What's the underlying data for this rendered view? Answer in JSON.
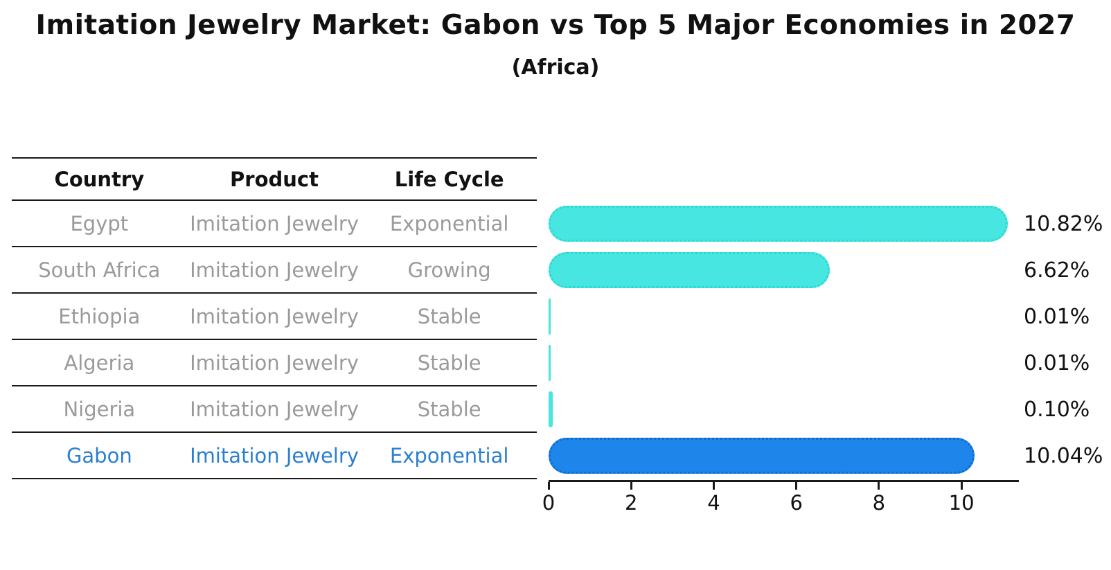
{
  "title": "Imitation Jewelry Market: Gabon vs Top 5 Major Economies in 2027",
  "subtitle": "(Africa)",
  "table": {
    "headers": [
      "Country",
      "Product",
      "Life Cycle"
    ],
    "rows": [
      {
        "country": "Egypt",
        "product": "Imitation Jewelry",
        "life_cycle": "Exponential",
        "highlight": false
      },
      {
        "country": "South Africa",
        "product": "Imitation Jewelry",
        "life_cycle": "Growing",
        "highlight": false
      },
      {
        "country": "Ethiopia",
        "product": "Imitation Jewelry",
        "life_cycle": "Stable",
        "highlight": false
      },
      {
        "country": "Algeria",
        "product": "Imitation Jewelry",
        "life_cycle": "Stable",
        "highlight": false
      },
      {
        "country": "Nigeria",
        "product": "Imitation Jewelry",
        "life_cycle": "Stable",
        "highlight": false
      },
      {
        "country": "Gabon",
        "product": "Imitation Jewelry",
        "life_cycle": "Exponential",
        "highlight": true
      }
    ]
  },
  "chart_data": {
    "type": "bar",
    "orientation": "horizontal",
    "title": "Imitation Jewelry Market: Gabon vs Top 5 Major Economies in 2027",
    "subtitle": "(Africa)",
    "categories": [
      "Egypt",
      "South Africa",
      "Ethiopia",
      "Algeria",
      "Nigeria",
      "Gabon"
    ],
    "values": [
      10.82,
      6.62,
      0.01,
      0.01,
      0.1,
      10.04
    ],
    "value_labels": [
      "10.82%",
      "6.62%",
      "0.01%",
      "0.01%",
      "0.10%",
      "10.04%"
    ],
    "unit": "%",
    "xticks": [
      "0",
      "2",
      "4",
      "6",
      "8",
      "10"
    ],
    "xlim": [
      0,
      11.34
    ],
    "grid": false,
    "legend": false,
    "highlight_index": 5
  },
  "colors": {
    "bar_default": "#47e6e1",
    "bar_default_edge": "#2bd9d3",
    "bar_highlight": "#1e86ea",
    "bar_highlight_edge": "#0d6bd0",
    "row_text": "#9a9a9a",
    "highlight_text": "#2b7fd0",
    "axis": "#1a1a1a"
  }
}
